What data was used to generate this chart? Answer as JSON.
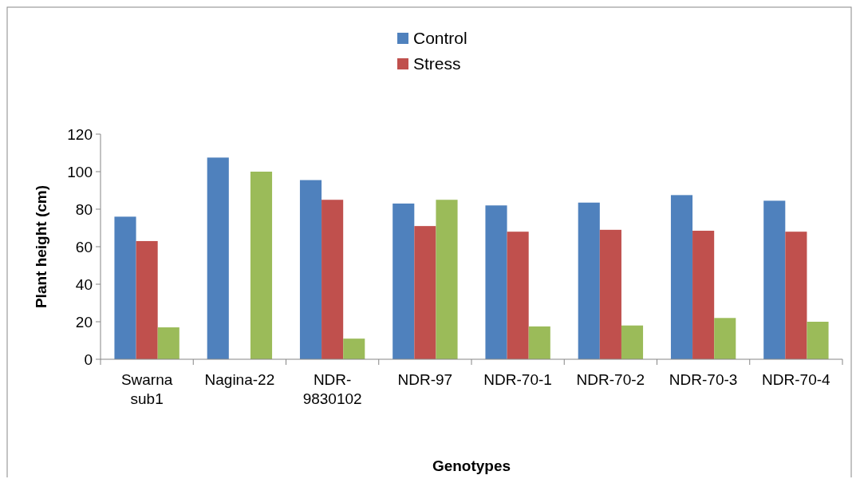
{
  "chart_data": {
    "type": "bar",
    "xlabel": "Genotypes",
    "ylabel": "Plant height (cm)",
    "categories": [
      "Swarna sub1",
      "Nagina-22",
      "NDR-9830102",
      "NDR-97",
      "NDR-70-1",
      "NDR-70-2",
      "NDR-70-3",
      "NDR-70-4"
    ],
    "series": [
      {
        "name": "Control",
        "color": "#4f81bd",
        "values": [
          76,
          107.5,
          95.5,
          83,
          82,
          83.5,
          87.5,
          84.5
        ]
      },
      {
        "name": "Stress",
        "color": "#c0504d",
        "values": [
          63,
          null,
          85,
          71,
          68,
          69,
          68.5,
          68
        ]
      },
      {
        "color": "#9bbb59",
        "values": [
          17,
          100,
          11,
          85,
          17.5,
          18,
          22,
          20
        ]
      }
    ],
    "ylim": [
      0,
      120
    ],
    "yticks": [
      0,
      20,
      40,
      60,
      80,
      100,
      120
    ],
    "legend": "top",
    "grid": false
  }
}
